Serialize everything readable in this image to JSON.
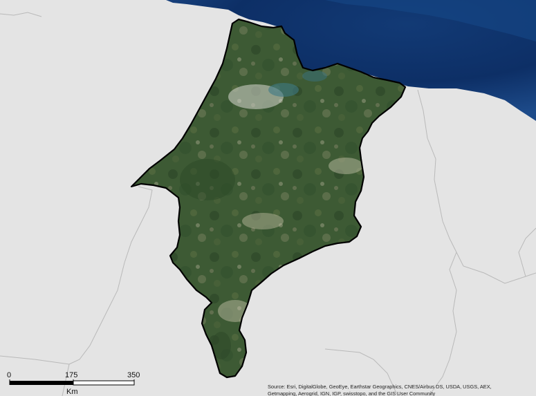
{
  "map": {
    "colors": {
      "land_background": "#e4e4e4",
      "ocean_deep": "#0d2f66",
      "ocean_shallow": "#2a5fa0",
      "state_outline": "#000000",
      "neighbor_borders": "#b9b9b9",
      "imagery_green": "#3d5a34"
    },
    "region_layer": "satellite imagery clipped to state boundary",
    "scale_bar": {
      "tick_labels": [
        "0",
        "175",
        "350"
      ],
      "unit": "Km"
    },
    "attribution": "Source: Esri, DigitalGlobe, GeoEye, Earthstar Geographics, CNES/Airbus DS, USDA, USGS, AEX, Getmapping, Aerogrid, IGN, IGP, swisstopo, and the GIS User Community"
  }
}
